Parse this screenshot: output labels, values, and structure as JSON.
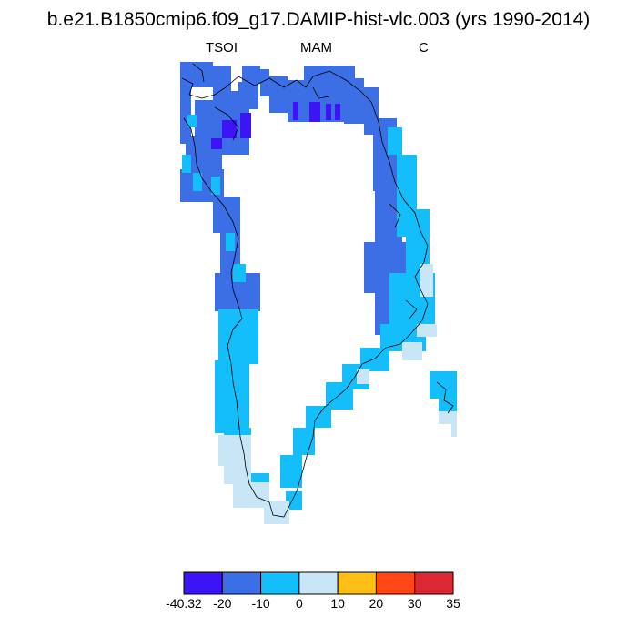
{
  "title": "b.e21.B1850cmip6.f09_g17.DAMIP-hist-vlc.003 (yrs 1990-2014)",
  "subtitle_left": "TSOI",
  "subtitle_center": "MAM",
  "subtitle_right": "C",
  "colorbar": {
    "labels": [
      "-40.32",
      "-20",
      "-10",
      "0",
      "10",
      "20",
      "30",
      "35"
    ],
    "colors": [
      "#3c14f5",
      "#3c6ee6",
      "#14befa",
      "#c8e6f5",
      "#ffbe14",
      "#ff4614",
      "#dc2832"
    ]
  },
  "palette": {
    "bin_-40_-20": "#3c14f5",
    "bin_-20_-10": "#3c6ee6",
    "bin_-10_0": "#14befa",
    "bin_0_10": "#c8e6f5"
  }
}
